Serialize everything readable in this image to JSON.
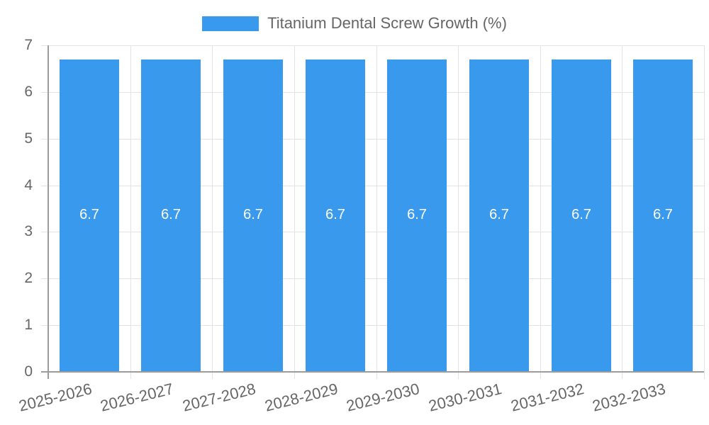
{
  "chart_data": {
    "type": "bar",
    "legend_label": "Titanium Dental Screw Growth (%)",
    "categories": [
      "2025-2026",
      "2026-2027",
      "2027-2028",
      "2028-2029",
      "2029-2030",
      "2030-2031",
      "2031-2032",
      "2032-2033"
    ],
    "series": [
      {
        "name": "Titanium Dental Screw Growth (%)",
        "values": [
          6.7,
          6.7,
          6.7,
          6.7,
          6.7,
          6.7,
          6.7,
          6.7
        ]
      }
    ],
    "value_labels": [
      "6.7",
      "6.7",
      "6.7",
      "6.7",
      "6.7",
      "6.7",
      "6.7",
      "6.7"
    ],
    "ylim": [
      0,
      7
    ],
    "yticks": [
      0,
      1,
      2,
      3,
      4,
      5,
      6,
      7
    ],
    "grid": true,
    "legend_position": "top",
    "x_label_rotation_deg": -14,
    "colors": {
      "bar": "#3999EC",
      "value_label": "#FFFFFF",
      "axis_text": "#666666",
      "gridline": "#E3E3E3",
      "axis_line": "#9C9C9C",
      "background": "#FFFFFF"
    }
  }
}
